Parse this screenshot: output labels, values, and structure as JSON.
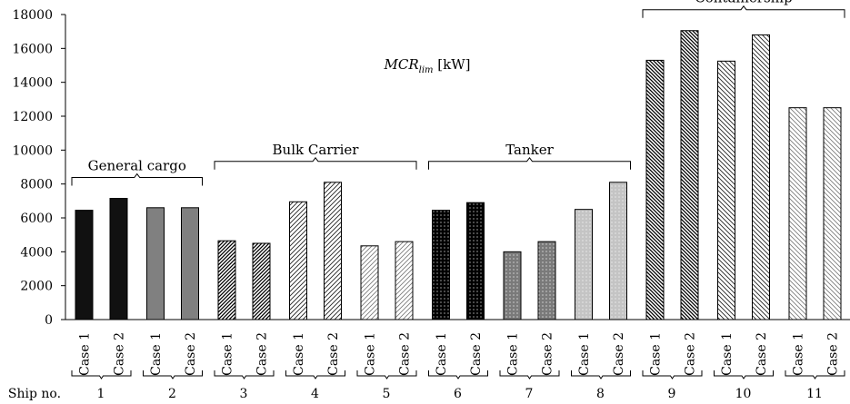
{
  "chart_data": {
    "type": "bar",
    "title_main": "MCR",
    "title_sub": "lim",
    "title_unit": " [kW]",
    "ylim": [
      0,
      18000
    ],
    "yticks": [
      0,
      2000,
      4000,
      6000,
      8000,
      10000,
      12000,
      14000,
      16000,
      18000
    ],
    "case_labels": [
      "Case 1",
      "Case 2"
    ],
    "ship_no_label": "Ship no.",
    "ships": [
      {
        "no": "1",
        "values": [
          6450,
          7150
        ],
        "fill": "#111111"
      },
      {
        "no": "2",
        "values": [
          6600,
          6600
        ],
        "fill": "#808080"
      },
      {
        "no": "3",
        "values": [
          4650,
          4500
        ],
        "fill": "hatch-dense"
      },
      {
        "no": "4",
        "values": [
          6950,
          8100
        ],
        "fill": "hatch-medium"
      },
      {
        "no": "5",
        "values": [
          4350,
          4600
        ],
        "fill": "hatch-light"
      },
      {
        "no": "6",
        "values": [
          6450,
          6900
        ],
        "fill": "dots-dark"
      },
      {
        "no": "7",
        "values": [
          4000,
          4600
        ],
        "fill": "dots-mid"
      },
      {
        "no": "8",
        "values": [
          6500,
          8100
        ],
        "fill": "dots-light"
      },
      {
        "no": "9",
        "values": [
          15300,
          17050
        ],
        "fill": "bhatch-dense"
      },
      {
        "no": "10",
        "values": [
          15250,
          16800
        ],
        "fill": "bhatch-medium"
      },
      {
        "no": "11",
        "values": [
          12500,
          12500
        ],
        "fill": "bhatch-light"
      }
    ],
    "groups": [
      {
        "name": "General cargo",
        "ships": [
          1,
          2
        ]
      },
      {
        "name": "Bulk Carrier",
        "ships": [
          3,
          5
        ]
      },
      {
        "name": "Tanker",
        "ships": [
          6,
          8
        ]
      },
      {
        "name": "Containership",
        "ships": [
          9,
          11
        ]
      }
    ]
  }
}
